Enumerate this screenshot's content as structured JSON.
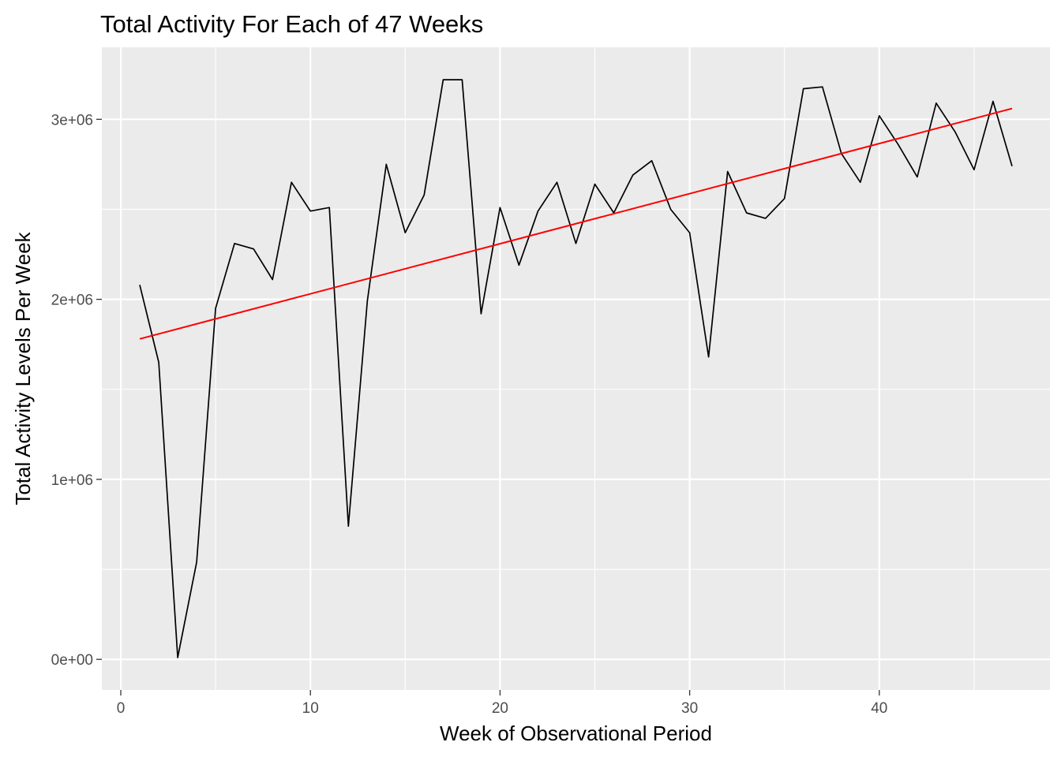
{
  "chart_data": {
    "type": "line",
    "title": "Total Activity For Each of 47 Weeks",
    "xlabel": "Week of Observational Period",
    "ylabel": "Total Activity Levels Per Week",
    "xlim": [
      -1.0,
      49.0
    ],
    "ylim": [
      -170000,
      3400000
    ],
    "x_ticks": [
      0,
      10,
      20,
      30,
      40
    ],
    "x_tick_labels": [
      "0",
      "10",
      "20",
      "30",
      "40"
    ],
    "y_ticks": [
      0,
      1000000,
      2000000,
      3000000
    ],
    "y_tick_labels": [
      "0e+00",
      "1e+06",
      "2e+06",
      "3e+06"
    ],
    "grid": true,
    "background": "#EBEBEB",
    "series": [
      {
        "type": "line",
        "color": "#000000",
        "x": [
          1,
          2,
          3,
          4,
          5,
          6,
          7,
          8,
          9,
          10,
          11,
          12,
          13,
          14,
          15,
          16,
          17,
          18,
          19,
          20,
          21,
          22,
          23,
          24,
          25,
          26,
          27,
          28,
          29,
          30,
          31,
          32,
          33,
          34,
          35,
          36,
          37,
          38,
          39,
          40,
          41,
          42,
          43,
          44,
          45,
          46,
          47
        ],
        "values": [
          2080000,
          1650000,
          10000,
          540000,
          1950000,
          2310000,
          2280000,
          2110000,
          2650000,
          2490000,
          2510000,
          740000,
          1990000,
          2750000,
          2370000,
          2580000,
          3220000,
          3220000,
          1920000,
          2510000,
          2190000,
          2490000,
          2650000,
          2310000,
          2640000,
          2480000,
          2690000,
          2770000,
          2500000,
          2370000,
          1680000,
          2710000,
          2480000,
          2450000,
          2560000,
          3170000,
          3180000,
          2810000,
          2650000,
          3020000,
          2860000,
          2680000,
          3090000,
          2930000,
          2720000,
          3100000,
          2740000
        ]
      },
      {
        "type": "trend",
        "color": "#FF0000",
        "x": [
          1,
          47
        ],
        "values": [
          1780000,
          3060000
        ]
      }
    ]
  }
}
